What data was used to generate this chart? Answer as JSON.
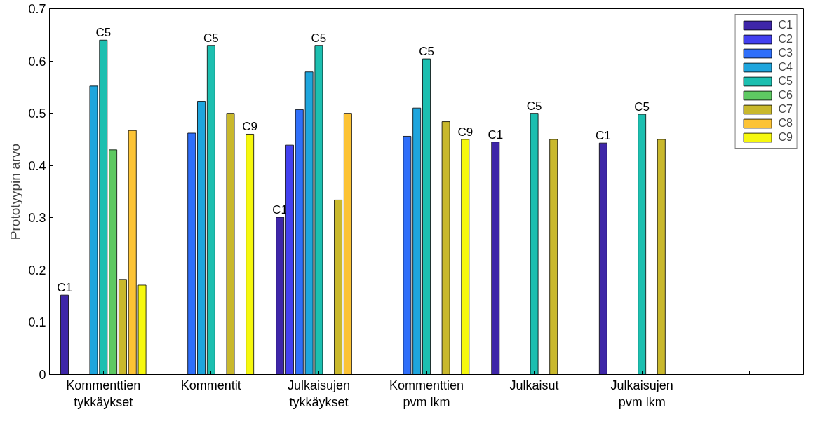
{
  "chart_data": {
    "type": "bar",
    "ylabel": "Prototyypin arvo",
    "categories": [
      "Kommenttien\ntykkäykset",
      "Kommentit",
      "Julkaisujen\ntykkäykset",
      "Kommenttien\npvm lkm",
      "Julkaisut",
      "Julkaisujen\npvm lkm",
      null
    ],
    "series": [
      {
        "name": "C1",
        "color": "#3e26a8",
        "values": [
          0.152,
          null,
          0.301,
          null,
          0.445,
          0.443,
          null
        ],
        "value_labels": [
          "C1",
          null,
          "C1",
          null,
          "C1",
          "C1",
          null
        ]
      },
      {
        "name": "C2",
        "color": "#4340f0",
        "values": [
          null,
          null,
          0.439,
          null,
          null,
          null,
          null
        ]
      },
      {
        "name": "C3",
        "color": "#2f6ffa",
        "values": [
          null,
          0.462,
          0.507,
          0.456,
          null,
          null,
          null
        ]
      },
      {
        "name": "C4",
        "color": "#1ea5dd",
        "values": [
          0.552,
          0.523,
          0.579,
          0.51,
          null,
          null,
          null
        ]
      },
      {
        "name": "C5",
        "color": "#1cbfb0",
        "values": [
          0.64,
          0.63,
          0.63,
          0.604,
          0.5,
          0.498,
          null
        ],
        "value_labels": [
          "C5",
          "C5",
          "C5",
          "C5",
          "C5",
          "C5",
          null
        ]
      },
      {
        "name": "C6",
        "color": "#5ec962",
        "values": [
          0.43,
          null,
          null,
          null,
          null,
          null,
          null
        ]
      },
      {
        "name": "C7",
        "color": "#c9b82c",
        "values": [
          0.182,
          0.5,
          0.334,
          0.484,
          0.45,
          0.45,
          null
        ]
      },
      {
        "name": "C8",
        "color": "#fcc335",
        "values": [
          0.467,
          null,
          0.5,
          null,
          null,
          null,
          null
        ]
      },
      {
        "name": "C9",
        "color": "#f6f80e",
        "values": [
          0.171,
          0.46,
          null,
          0.45,
          null,
          null,
          null
        ],
        "value_labels": [
          null,
          "C9",
          null,
          "C9",
          null,
          null,
          null
        ]
      }
    ],
    "ylim": [
      0,
      0.7
    ],
    "yticks": [
      0,
      0.1,
      0.2,
      0.3,
      0.4,
      0.5,
      0.6,
      0.7
    ],
    "grid": false,
    "legend": "top right"
  }
}
